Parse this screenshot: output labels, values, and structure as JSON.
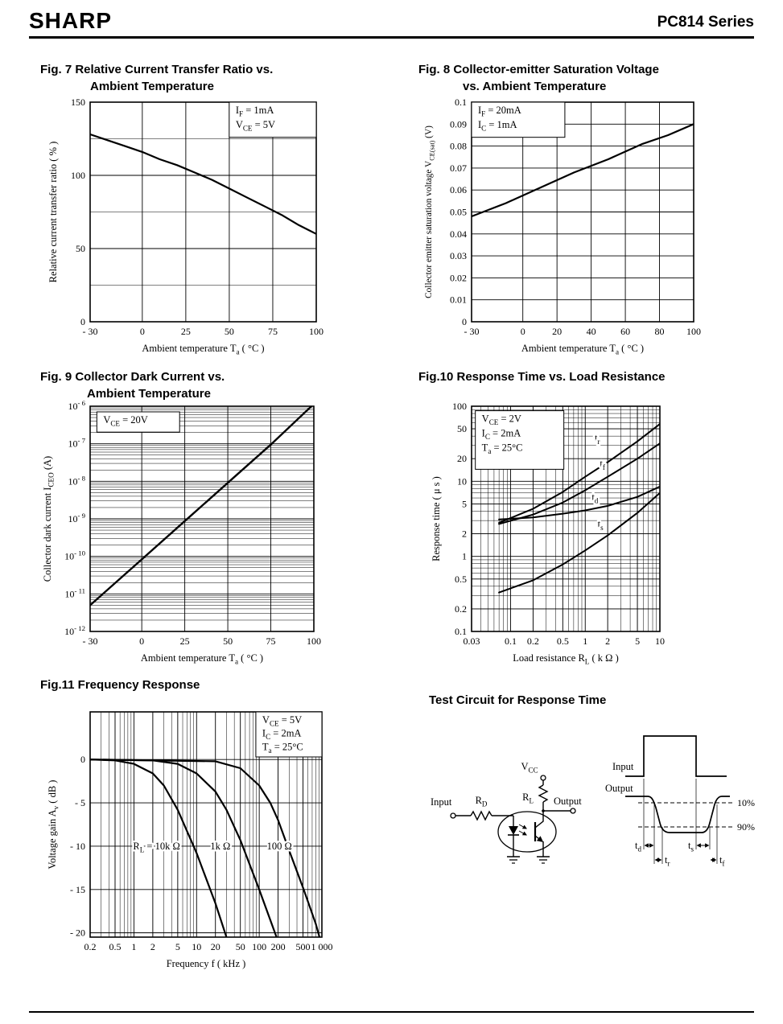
{
  "header": {
    "logo": "SHARP",
    "product": "PC814 Series"
  },
  "chart_data": [
    {
      "id": "fig7",
      "type": "line",
      "title_lines": [
        "Fig. 7 Relative Current Transfer Ratio vs.",
        "Ambient Temperature"
      ],
      "x": {
        "scale": "linear",
        "min": -30,
        "max": 100,
        "ticks": [
          -30,
          0,
          25,
          50,
          75,
          100
        ],
        "tick_labels": [
          "- 30",
          "0",
          "25",
          "50",
          "75",
          "100"
        ],
        "label": [
          "Ambient temperature T",
          "_a",
          "  ( °C )"
        ]
      },
      "y": {
        "scale": "linear",
        "min": 0,
        "max": 150,
        "ticks": [
          0,
          50,
          100,
          150
        ],
        "tick_labels": [
          "0",
          "50",
          "100",
          "150"
        ],
        "minor_step": 25,
        "label": [
          "Relative current transfer ratio        ( % )"
        ]
      },
      "series": [
        {
          "name": "relative-ctr",
          "points": [
            [
              -30,
              128
            ],
            [
              -20,
              124
            ],
            [
              -10,
              120
            ],
            [
              0,
              116
            ],
            [
              10,
              111
            ],
            [
              20,
              107
            ],
            [
              30,
              102
            ],
            [
              40,
              97
            ],
            [
              50,
              91
            ],
            [
              60,
              85
            ],
            [
              70,
              79
            ],
            [
              80,
              73
            ],
            [
              90,
              66
            ],
            [
              100,
              60
            ]
          ]
        }
      ],
      "conditions": {
        "box": {
          "x": 0.615,
          "y": 0,
          "w": 0.385,
          "h": 0.16
        },
        "lines": [
          [
            "I",
            "_F",
            " = 1mA"
          ],
          [
            "V",
            "_CE",
            " = 5V"
          ]
        ]
      }
    },
    {
      "id": "fig8",
      "type": "line",
      "title_lines": [
        "Fig. 8 Collector-emitter Saturation Voltage",
        "vs. Ambient Temperature"
      ],
      "x": {
        "scale": "linear",
        "min": -30,
        "max": 100,
        "ticks": [
          -30,
          0,
          20,
          40,
          60,
          80,
          100
        ],
        "tick_labels": [
          "- 30",
          "0",
          "20",
          "40",
          "60",
          "80",
          "100"
        ],
        "label": [
          "Ambient temperature T",
          "_a",
          "  ( °C )"
        ]
      },
      "y": {
        "scale": "linear",
        "min": 0,
        "max": 0.1,
        "ticks": [
          0,
          0.01,
          0.02,
          0.03,
          0.04,
          0.05,
          0.06,
          0.07,
          0.08,
          0.09,
          0.1
        ],
        "tick_labels": [
          "0",
          "0.01",
          "0.02",
          "0.03",
          "0.04",
          "0.05",
          "0.06",
          "0.07",
          "0.08",
          "0.09",
          "0.1"
        ],
        "label": [
          "Collector emitter saturation voltage V",
          "_CE(sat)",
          "  (V)"
        ]
      },
      "series": [
        {
          "name": "vce-sat",
          "points": [
            [
              -30,
              0.048
            ],
            [
              -10,
              0.054
            ],
            [
              10,
              0.061
            ],
            [
              30,
              0.068
            ],
            [
              50,
              0.074
            ],
            [
              70,
              0.081
            ],
            [
              85,
              0.085
            ],
            [
              100,
              0.09
            ]
          ]
        }
      ],
      "conditions": {
        "box": {
          "x": 0,
          "y": 0,
          "w": 0.42,
          "h": 0.16
        },
        "lines": [
          [
            "I",
            "_F",
            " = 20mA"
          ],
          [
            "I",
            "_C",
            " = 1mA"
          ]
        ]
      }
    },
    {
      "id": "fig9",
      "type": "line",
      "title_lines": [
        "Fig. 9 Collector Dark Current vs.",
        "Ambient Temperature"
      ],
      "x": {
        "scale": "linear",
        "min": -30,
        "max": 100,
        "ticks": [
          -30,
          0,
          25,
          50,
          75,
          100
        ],
        "tick_labels": [
          "- 30",
          "0",
          "25",
          "50",
          "75",
          "100"
        ],
        "label": [
          "Ambient temperature T",
          "_a",
          "  ( °C )"
        ]
      },
      "y": {
        "scale": "log",
        "min": 1e-12,
        "max": 1e-06,
        "ticks": [
          1e-12,
          1e-11,
          1e-10,
          1e-09,
          1e-08,
          1e-07,
          1e-06
        ],
        "tick_labels": [
          [
            "10",
            "^- 12"
          ],
          [
            "10",
            "^- 11"
          ],
          [
            "10",
            "^- 10"
          ],
          [
            "10",
            "^- 9"
          ],
          [
            "10",
            "^- 8"
          ],
          [
            "10",
            "^- 7"
          ],
          [
            "10",
            "^- 6"
          ]
        ],
        "label": [
          "Collector dark current I",
          "_CEO",
          "  (A)"
        ]
      },
      "series": [
        {
          "name": "iceo",
          "points": [
            [
              -30,
              5e-12
            ],
            [
              0,
              8.3e-11
            ],
            [
              25,
              8.7e-10
            ],
            [
              50,
              9.1e-09
            ],
            [
              75,
              9.5e-08
            ],
            [
              100,
              1.15e-06
            ]
          ],
          "width": 2.4
        }
      ],
      "conditions": {
        "box": {
          "x": 0.03,
          "y": 0.025,
          "w": 0.37,
          "h": 0.09
        },
        "lines": [
          [
            "V",
            "_CE",
            " = 20V"
          ]
        ]
      }
    },
    {
      "id": "fig10",
      "type": "line",
      "title_lines": [
        "Fig.10 Response Time vs. Load Resistance"
      ],
      "x": {
        "scale": "log",
        "min": 0.03,
        "max": 10,
        "ticks": [
          0.03,
          0.1,
          0.2,
          0.5,
          1,
          2,
          5,
          10
        ],
        "tick_labels": [
          "0.03",
          "0.1",
          "0.2",
          "0.5",
          "1",
          "2",
          "5",
          "10"
        ],
        "label": [
          "Load resistance R",
          "_L",
          "  ( k Ω )"
        ]
      },
      "y": {
        "scale": "log",
        "min": 0.1,
        "max": 100,
        "ticks": [
          0.1,
          0.2,
          0.5,
          1,
          2,
          5,
          10,
          20,
          50,
          100
        ],
        "tick_labels": [
          "0.1",
          "0.2",
          "0.5",
          "1",
          "2",
          "5",
          "10",
          "20",
          "50",
          "100"
        ],
        "label": [
          "Response time ( μ s )"
        ]
      },
      "series": [
        {
          "name": "rise-time-tr",
          "points": [
            [
              0.07,
              2.8
            ],
            [
              0.2,
              4.3
            ],
            [
              0.5,
              7.2
            ],
            [
              1,
              11.5
            ],
            [
              2,
              18
            ],
            [
              5,
              34
            ],
            [
              10,
              58
            ]
          ],
          "width": 2.0
        },
        {
          "name": "fall-time-tf",
          "points": [
            [
              0.07,
              2.7
            ],
            [
              0.2,
              3.6
            ],
            [
              0.5,
              5.2
            ],
            [
              1,
              7.6
            ],
            [
              2,
              11.5
            ],
            [
              5,
              20
            ],
            [
              10,
              32
            ]
          ],
          "width": 2.0
        },
        {
          "name": "delay-time-td",
          "points": [
            [
              0.07,
              3.1
            ],
            [
              0.2,
              3.3
            ],
            [
              0.5,
              3.7
            ],
            [
              1,
              4.1
            ],
            [
              2,
              4.7
            ],
            [
              5,
              6.2
            ],
            [
              10,
              8.5
            ]
          ],
          "width": 2.0
        },
        {
          "name": "storage-time-ts",
          "points": [
            [
              0.07,
              0.33
            ],
            [
              0.2,
              0.48
            ],
            [
              0.5,
              0.78
            ],
            [
              1,
              1.2
            ],
            [
              2,
              1.9
            ],
            [
              5,
              3.8
            ],
            [
              10,
              7
            ]
          ],
          "width": 2.0
        }
      ],
      "labels": [
        {
          "x": 1.45,
          "y": 34,
          "tokens": [
            "t",
            "_r"
          ]
        },
        {
          "x": 1.7,
          "y": 15.5,
          "tokens": [
            "t",
            "_f"
          ]
        },
        {
          "x": 1.35,
          "y": 5.6,
          "tokens": [
            "t",
            "_d"
          ]
        },
        {
          "x": 1.6,
          "y": 2.45,
          "tokens": [
            "t",
            "_s"
          ]
        }
      ],
      "conditions": {
        "box": {
          "x": 0.02,
          "y": 0.02,
          "w": 0.47,
          "h": 0.26
        },
        "lines": [
          [
            "V",
            "_CE",
            " = 2V"
          ],
          [
            "I",
            "_C",
            " = 2mA"
          ],
          [
            "T",
            "_a",
            " = 25°C"
          ]
        ]
      }
    },
    {
      "id": "fig11",
      "type": "line",
      "title_lines": [
        "Fig.11 Frequency Response"
      ],
      "x": {
        "scale": "log",
        "min": 0.2,
        "max": 1000,
        "ticks": [
          0.2,
          0.5,
          1,
          2,
          5,
          10,
          20,
          50,
          100,
          200,
          500,
          1000
        ],
        "tick_labels": [
          "0.2",
          "0.5",
          "1",
          "2",
          "5",
          "10",
          "20",
          "50",
          "100",
          "200",
          "500",
          "1 000"
        ],
        "label": [
          "Frequency f   ( kHz )"
        ]
      },
      "y": {
        "scale": "linear",
        "min": -20.5,
        "max": 5.5,
        "ticks": [
          0,
          -5,
          -10,
          -15,
          -20
        ],
        "tick_labels": [
          "0",
          "- 5",
          "- 10",
          "- 15",
          "- 20"
        ],
        "label": [
          "Voltage gain A",
          "_v",
          "  ( dB )"
        ]
      },
      "series": [
        {
          "name": "load-10k",
          "points": [
            [
              0.2,
              0
            ],
            [
              0.5,
              -0.1
            ],
            [
              1,
              -0.5
            ],
            [
              2,
              -1.6
            ],
            [
              3,
              -3
            ],
            [
              5,
              -5.8
            ],
            [
              10,
              -10.8
            ],
            [
              20,
              -16.6
            ],
            [
              30,
              -20.5
            ],
            [
              40,
              -24
            ]
          ]
        },
        {
          "name": "load-1k",
          "points": [
            [
              0.2,
              0
            ],
            [
              2,
              -0.1
            ],
            [
              5,
              -0.5
            ],
            [
              10,
              -1.6
            ],
            [
              20,
              -3.7
            ],
            [
              30,
              -5.8
            ],
            [
              50,
              -9.3
            ],
            [
              100,
              -15
            ],
            [
              200,
              -21
            ],
            [
              260,
              -24
            ]
          ]
        },
        {
          "name": "load-100",
          "points": [
            [
              0.2,
              0
            ],
            [
              20,
              -0.2
            ],
            [
              50,
              -1
            ],
            [
              100,
              -3
            ],
            [
              150,
              -5
            ],
            [
              200,
              -7
            ],
            [
              300,
              -10.5
            ],
            [
              500,
              -14.8
            ],
            [
              800,
              -19
            ],
            [
              1000,
              -21.5
            ]
          ]
        }
      ],
      "labels": [
        {
          "x": 2.3,
          "y": -10.4,
          "tokens": [
            "R",
            "_L",
            " = 10k Ω"
          ]
        },
        {
          "x": 24,
          "y": -10.4,
          "tokens": [
            "1k Ω"
          ]
        },
        {
          "x": 210,
          "y": -10.4,
          "tokens": [
            "100 Ω"
          ]
        }
      ],
      "conditions": {
        "box": {
          "x": 0.715,
          "y": 0,
          "w": 0.285,
          "h": 0.2
        },
        "lines": [
          [
            "V",
            "_CE",
            " = 5V"
          ],
          [
            "I",
            "_C",
            " = 2mA"
          ],
          [
            "T",
            "_a",
            " = 25°C"
          ]
        ]
      }
    }
  ],
  "test_circuit": {
    "title": "Test Circuit for Response Time",
    "input_label": "Input",
    "output_label": "Output",
    "vcc": [
      "V",
      "CC"
    ],
    "rd": [
      "R",
      "D"
    ],
    "rl": [
      "R",
      "L"
    ],
    "wave_input": "Input",
    "wave_output": "Output",
    "pct10": "10%",
    "pct90": "90%",
    "t_d": [
      "t",
      "d"
    ],
    "t_s": [
      "t",
      "s"
    ],
    "t_r": [
      "t",
      "r"
    ],
    "t_f": [
      "t",
      "f"
    ]
  }
}
